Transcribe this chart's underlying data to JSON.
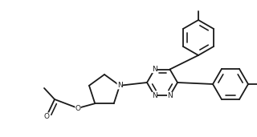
{
  "bg_color": "#ffffff",
  "line_color": "#1a1a1a",
  "line_width": 1.3,
  "font_size": 6.5,
  "fig_width": 3.2,
  "fig_height": 1.71,
  "dpi": 100,
  "xlim": [
    0,
    3.2
  ],
  "ylim": [
    0,
    1.71
  ]
}
